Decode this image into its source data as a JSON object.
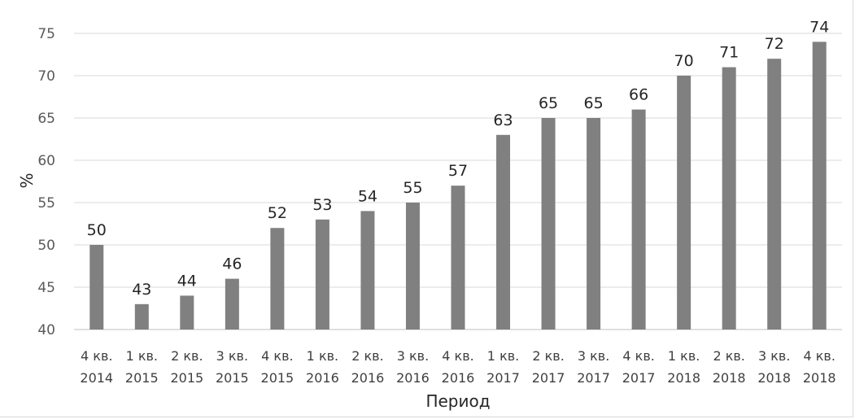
{
  "chart_data": {
    "type": "bar",
    "title": "",
    "xlabel": "Период",
    "ylabel": "%",
    "ylim": [
      40,
      75
    ],
    "yticks": [
      40,
      45,
      50,
      55,
      60,
      65,
      70,
      75
    ],
    "grid": true,
    "legend": "none",
    "bar_color": "#808080",
    "categories": [
      [
        "4 кв.",
        "2014"
      ],
      [
        "1 кв.",
        "2015"
      ],
      [
        "2 кв.",
        "2015"
      ],
      [
        "3 кв.",
        "2015"
      ],
      [
        "4 кв.",
        "2015"
      ],
      [
        "1 кв.",
        "2016"
      ],
      [
        "2 кв.",
        "2016"
      ],
      [
        "3 кв.",
        "2016"
      ],
      [
        "4 кв.",
        "2016"
      ],
      [
        "1 кв.",
        "2017"
      ],
      [
        "2 кв.",
        "2017"
      ],
      [
        "3 кв.",
        "2017"
      ],
      [
        "4 кв.",
        "2017"
      ],
      [
        "1 кв.",
        "2018"
      ],
      [
        "2 кв.",
        "2018"
      ],
      [
        "3 кв.",
        "2018"
      ],
      [
        "4 кв.",
        "2018"
      ]
    ],
    "values": [
      50,
      43,
      44,
      46,
      52,
      53,
      54,
      55,
      57,
      63,
      65,
      65,
      66,
      70,
      71,
      72,
      74
    ]
  }
}
